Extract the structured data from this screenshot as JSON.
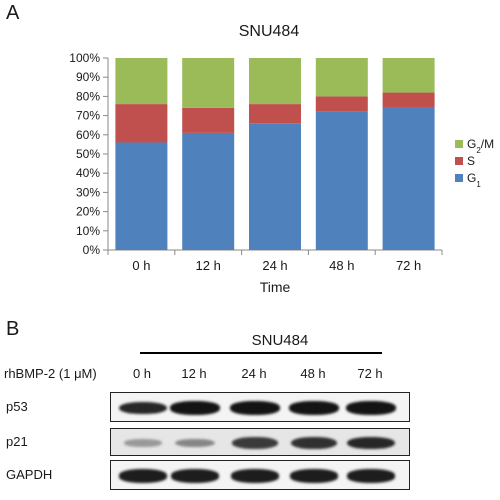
{
  "panel_a": {
    "letter": "A",
    "chart_data": {
      "type": "bar",
      "stacked": true,
      "title": "SNU484",
      "xlabel": "Time",
      "ylabel": "",
      "categories": [
        "0 h",
        "12 h",
        "24 h",
        "48 h",
        "72 h"
      ],
      "ylim": [
        0,
        100
      ],
      "yticks": [
        "0%",
        "10%",
        "20%",
        "30%",
        "40%",
        "50%",
        "60%",
        "70%",
        "80%",
        "90%",
        "100%"
      ],
      "grid": false,
      "legend_position": "right",
      "series": [
        {
          "name": "G1",
          "color": "#4f81bd",
          "values": [
            56,
            61,
            66,
            72,
            74
          ]
        },
        {
          "name": "S",
          "color": "#c0504d",
          "values": [
            20,
            13,
            10,
            8,
            8
          ]
        },
        {
          "name": "G2/M",
          "color": "#9bbb59",
          "values": [
            24,
            26,
            24,
            20,
            18
          ]
        }
      ],
      "legend_order": [
        "G2/M",
        "S",
        "G1"
      ]
    }
  },
  "panel_b": {
    "letter": "B",
    "title": "SNU484",
    "treatment_label": "rhBMP-2 (1 μM)",
    "lanes": [
      "0 h",
      "12 h",
      "24 h",
      "48 h",
      "72 h"
    ],
    "rows": [
      {
        "label": "p53",
        "band_intensity": [
          0.85,
          0.95,
          0.95,
          0.95,
          0.95
        ]
      },
      {
        "label": "p21",
        "band_intensity": [
          0.25,
          0.35,
          0.75,
          0.8,
          0.85
        ]
      },
      {
        "label": "GAPDH",
        "band_intensity": [
          0.9,
          0.9,
          0.9,
          0.9,
          0.9
        ]
      }
    ]
  }
}
